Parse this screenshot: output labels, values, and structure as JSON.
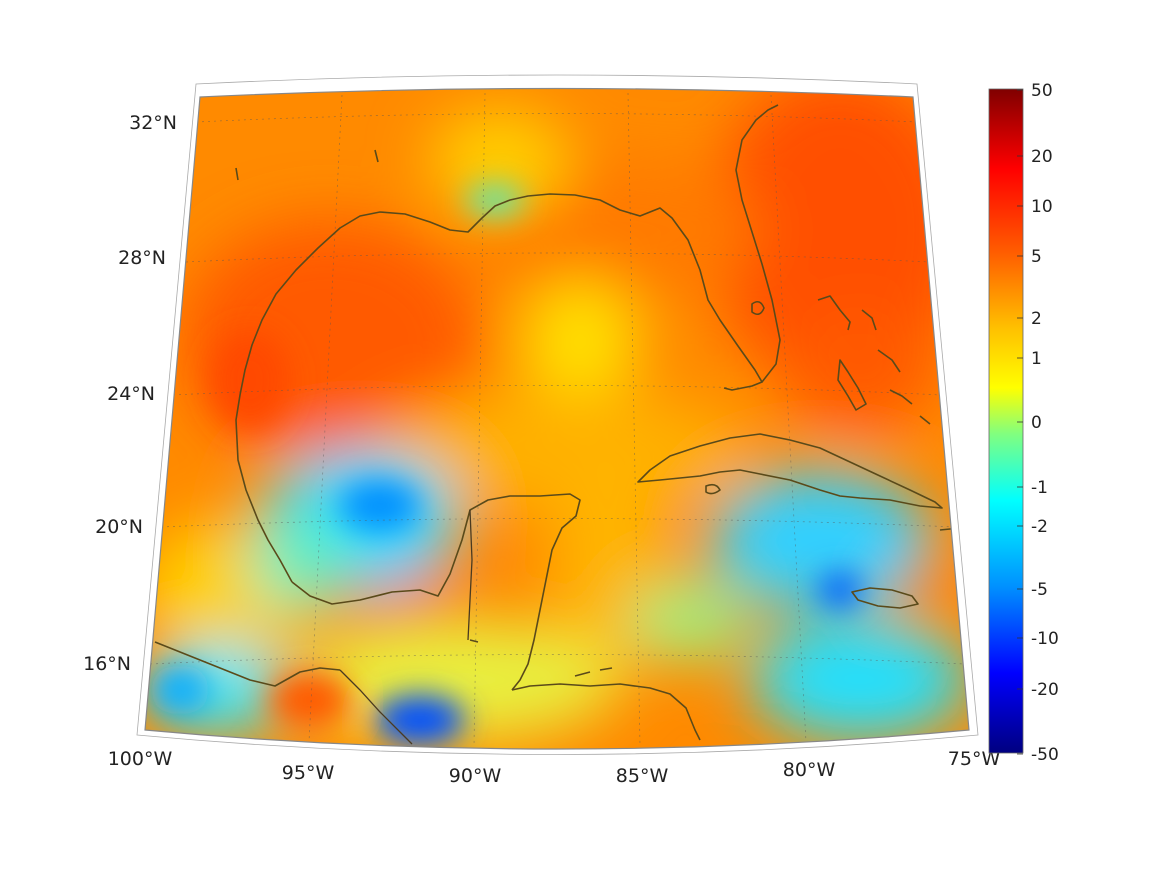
{
  "colorbar": {
    "tick_labels": [
      "50",
      "20",
      "10",
      "5",
      "2",
      "1",
      "0",
      "-1",
      "-2",
      "-5",
      "-10",
      "-20",
      "-50"
    ],
    "colormap": "jet",
    "range": [
      -50,
      50
    ]
  },
  "axes": {
    "latitude_labels": [
      "32°N",
      "28°N",
      "24°N",
      "20°N",
      "16°N"
    ],
    "longitude_labels": [
      "100°W",
      "95°W",
      "90°W",
      "85°W",
      "80°W",
      "75°W"
    ],
    "lat_range": [
      14,
      33
    ],
    "lon_range": [
      -100,
      -75
    ],
    "grid": true
  },
  "colors": {
    "jet_dark_red": "#800000",
    "jet_red": "#ff2000",
    "jet_orange": "#ff8000",
    "jet_yellow": "#ffff00",
    "jet_cyan": "#00ffff",
    "jet_blue": "#0040ff",
    "jet_dark_blue": "#000080",
    "coastline": "#5a4a1a"
  }
}
